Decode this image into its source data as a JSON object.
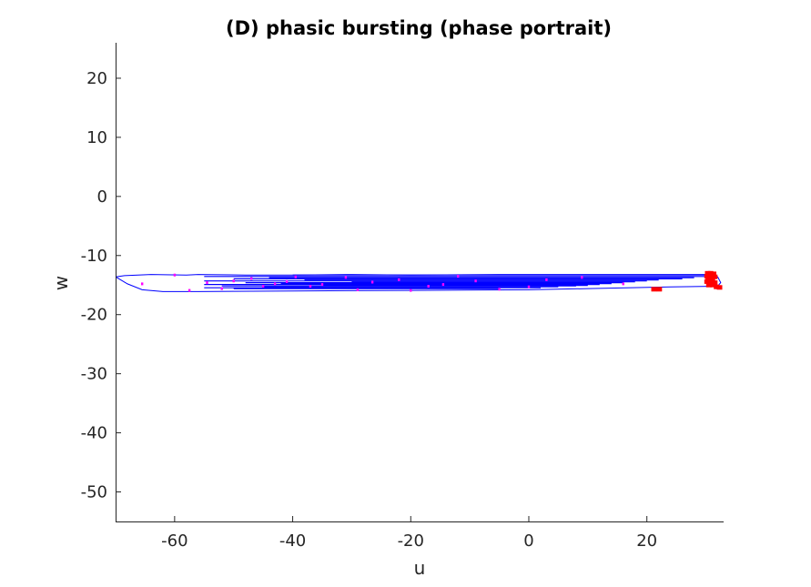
{
  "chart_data": {
    "type": "line",
    "title": "(D) phasic bursting (phase portrait)",
    "xlabel": "u",
    "ylabel": "w",
    "xlim": [
      -70,
      33
    ],
    "ylim": [
      -55,
      26
    ],
    "xticks": [
      -60,
      -40,
      -20,
      0,
      20
    ],
    "yticks": [
      20,
      10,
      0,
      -10,
      -20,
      -30,
      -40,
      -50
    ],
    "grid": false,
    "legend": "none",
    "series": [
      {
        "type": "line",
        "color": "#0000ff",
        "points": [
          [
            -70,
            -13.6
          ],
          [
            -68.5,
            -13.4
          ],
          [
            -64,
            -13.2
          ],
          [
            -58,
            -13.3
          ],
          [
            -56,
            -13.2
          ],
          [
            -48,
            -13.3
          ],
          [
            -40,
            -13.3
          ],
          [
            -30,
            -13.2
          ],
          [
            -20,
            -13.3
          ],
          [
            -5,
            -13.2
          ],
          [
            10,
            -13.2
          ],
          [
            25,
            -13.2
          ],
          [
            30,
            -13.2
          ],
          [
            32,
            -13.6
          ],
          [
            32.5,
            -14.6
          ],
          [
            32,
            -15.2
          ],
          [
            24,
            -15.3
          ],
          [
            10,
            -15.6
          ],
          [
            0,
            -15.8
          ],
          [
            -20,
            -15.9
          ],
          [
            -40,
            -16.0
          ],
          [
            -56,
            -16.1
          ],
          [
            -62,
            -16.1
          ],
          [
            -65.5,
            -15.8
          ],
          [
            -68,
            -14.8
          ],
          [
            -69.5,
            -13.9
          ],
          [
            -70,
            -13.6
          ]
        ]
      },
      {
        "type": "hlines",
        "color": "#0000ff",
        "lines": [
          [
            -40,
            31,
            -13.3
          ],
          [
            -55,
            30,
            -13.55
          ],
          [
            -44,
            28,
            -13.75
          ],
          [
            -50,
            26,
            -13.95
          ],
          [
            -38,
            22,
            -14.15
          ],
          [
            -55,
            20,
            -14.3
          ],
          [
            -30,
            18,
            -14.45
          ],
          [
            -48,
            16,
            -14.6
          ],
          [
            -42,
            14,
            -14.75
          ],
          [
            -55,
            12,
            -14.9
          ],
          [
            -35,
            10,
            -15.05
          ],
          [
            -52,
            8,
            -15.15
          ],
          [
            -45,
            5,
            -15.3
          ],
          [
            -55,
            2,
            -15.45
          ],
          [
            -50,
            -5,
            -15.6
          ]
        ]
      },
      {
        "type": "scatter",
        "color": "#ff00ff",
        "points": [
          [
            -65.5,
            -14.8
          ],
          [
            -60,
            -13.3
          ],
          [
            -57.5,
            -15.9
          ],
          [
            -54.5,
            -14.6
          ],
          [
            -52,
            -15.6
          ],
          [
            -50,
            -14.3
          ],
          [
            -47,
            -13.9
          ],
          [
            -45,
            -15.2
          ],
          [
            -43,
            -14.8
          ],
          [
            -41,
            -14.4
          ],
          [
            -39.5,
            -13.6
          ],
          [
            -37,
            -15.2
          ],
          [
            -35,
            -14.9
          ],
          [
            -31,
            -13.7
          ],
          [
            -29,
            -15.8
          ],
          [
            -26.5,
            -14.5
          ],
          [
            -22,
            -14.1
          ],
          [
            -20,
            -15.9
          ],
          [
            -17,
            -15.2
          ],
          [
            -14.5,
            -14.9
          ],
          [
            -12,
            -13.5
          ],
          [
            -9,
            -14.3
          ],
          [
            -5,
            -15.7
          ],
          [
            0,
            -15.3
          ],
          [
            3,
            -14.1
          ],
          [
            9,
            -13.7
          ],
          [
            16,
            -14.8
          ],
          [
            21,
            -15.6
          ]
        ]
      },
      {
        "type": "cluster",
        "color": "#ff0000",
        "points": [
          [
            30.3,
            -13.0
          ],
          [
            30.8,
            -13.0
          ],
          [
            31.3,
            -13.1
          ],
          [
            30.2,
            -13.5
          ],
          [
            31.0,
            -13.5
          ],
          [
            31.5,
            -13.6
          ],
          [
            30.4,
            -14.0
          ],
          [
            31.1,
            -14.0
          ],
          [
            30.2,
            -14.4
          ],
          [
            30.8,
            -14.5
          ],
          [
            31.5,
            -14.6
          ],
          [
            30.5,
            -15.0
          ],
          [
            31.2,
            -15.0
          ],
          [
            31.8,
            -15.3
          ],
          [
            32.3,
            -15.4
          ],
          [
            21.2,
            -15.7
          ],
          [
            22.1,
            -15.7
          ]
        ]
      }
    ]
  }
}
